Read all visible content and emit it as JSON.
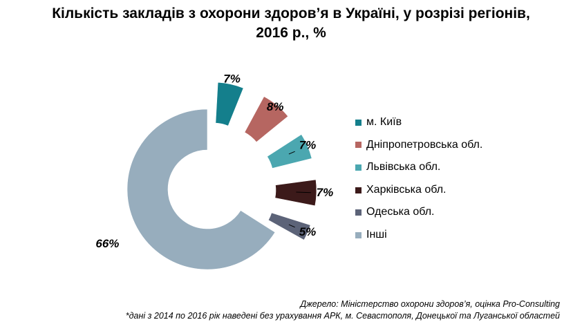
{
  "title_line1": "Кількість закладів з охорони здоров’я в Україні, у розрізі регіонів,",
  "title_line2": "2016 р., %",
  "chart_data": {
    "type": "pie",
    "donut": true,
    "exploded": true,
    "categories": [
      "м. Київ",
      "Дніпропетровська обл.",
      "Львівська обл.",
      "Харківська обл.",
      "Одеська обл.",
      "Інші"
    ],
    "values": [
      7,
      8,
      7,
      7,
      5,
      66
    ],
    "value_labels": [
      "7%",
      "8%",
      "7%",
      "7%",
      "5%",
      "66%"
    ],
    "colors": [
      "#147f8c",
      "#b66661",
      "#4ba7b0",
      "#3c1a1a",
      "#5c6378",
      "#97adbd"
    ],
    "legend_position": "right"
  },
  "footer": {
    "source": "Джерело: Міністерство охорони здоров’я, оцінка Pro-Consulting",
    "note": "*дані з 2014 по 2016 рік наведені без урахування АРК, м. Севастополя, Донецької та Луганської областей"
  }
}
